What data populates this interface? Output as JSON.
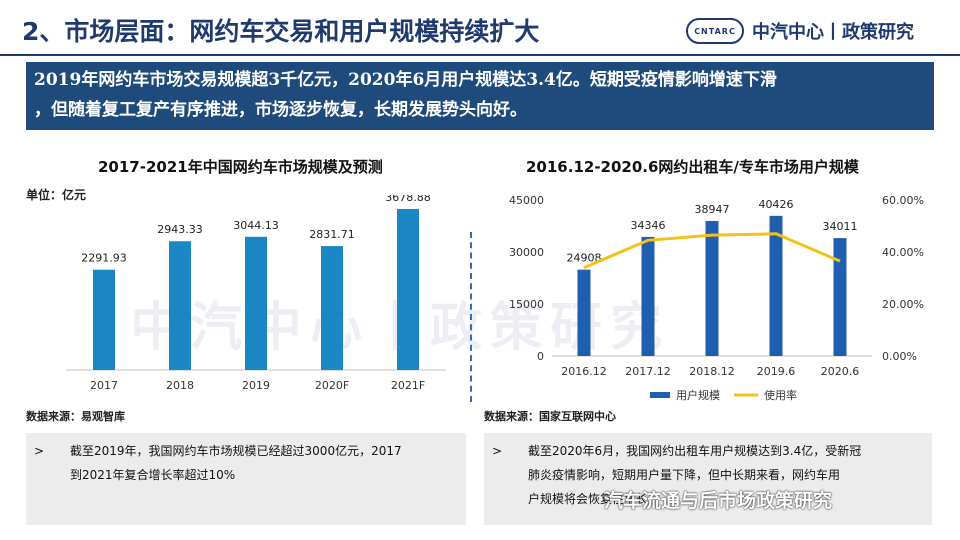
{
  "header": {
    "title": "2、市场层面：网约车交易和用户规模持续扩大",
    "logo_badge": "CNTARC",
    "logo_text": "中汽中心丨政策研究"
  },
  "summary": {
    "line1": "2019年网约车市场交易规模超3千亿元，2020年6月用户规模达3.4亿。短期受疫情影响增速下滑",
    "line2": "，但随着复工复产有序推进，市场逐步恢复，长期发展势头向好。"
  },
  "watermark": "中汽中心丨政策研究",
  "wechat_account": "汽车流通与后市场政策研究",
  "left_note": {
    "bullet": ">",
    "line1": "截至2019年，我国网约车市场规模已经超过3000亿元，2017",
    "line2": "到2021年复合增长率超过10%"
  },
  "right_note": {
    "bullet": ">",
    "line1": "截至2020年6月，我国网约出租车用户规模达到3.4亿，受新冠",
    "line2": "肺炎疫情影响，短期用户量下降，但中长期来看，网约车用",
    "line3": "户规模将会恢复性增长"
  },
  "chart_data": [
    {
      "type": "bar",
      "title": "2017-2021年中国网约车市场规模及预测",
      "unit_label": "单位：亿元",
      "source": "数据来源：易观智库",
      "categories": [
        "2017",
        "2018",
        "2019",
        "2020F",
        "2021F"
      ],
      "values": [
        2291.93,
        2943.33,
        3044.13,
        2831.71,
        3678.88
      ],
      "value_labels": [
        "2291.93",
        "2943.33",
        "3044.13",
        "2831.71",
        "3678.88"
      ],
      "ylim": [
        0,
        4000
      ],
      "grid": false,
      "bar_color": "#1a86c4"
    },
    {
      "type": "bar",
      "title": "2016.12-2020.6网约出租车/专车市场用户规模",
      "source": "数据来源：国家互联网中心",
      "categories": [
        "2016.12",
        "2017.12",
        "2018.12",
        "2019.6",
        "2020.6"
      ],
      "series": [
        {
          "name": "用户规模",
          "type": "bar",
          "values": [
            24908,
            34346,
            38947,
            40426,
            34011
          ],
          "color": "#1f5fae",
          "axis": "left"
        },
        {
          "name": "使用率",
          "type": "line",
          "values": [
            34.0,
            44.5,
            46.5,
            47.0,
            36.5
          ],
          "color": "#f5c118",
          "axis": "right"
        }
      ],
      "value_labels": [
        "24908",
        "34346",
        "38947",
        "40426",
        "34011"
      ],
      "ylim_left": [
        0,
        45000
      ],
      "yticks_left": [
        "0",
        "15000",
        "30000",
        "45000"
      ],
      "ylim_right": [
        0,
        60
      ],
      "yticks_right": [
        "0.00%",
        "20.00%",
        "40.00%",
        "60.00%"
      ],
      "legend_position": "bottom",
      "grid": false
    }
  ]
}
